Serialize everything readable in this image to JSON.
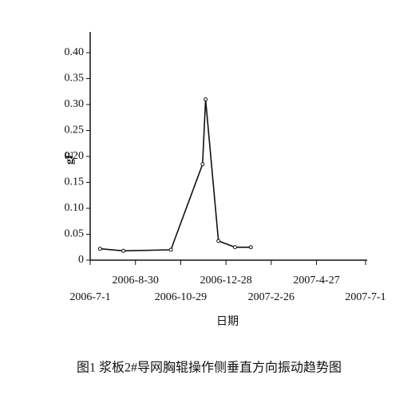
{
  "chart_data": {
    "type": "line",
    "title": "图1  浆板2#导网胸辊操作侧垂直方向振动趋势图",
    "x_label": "日期",
    "y_label": "gE",
    "x": [
      "2006-7-14",
      "2006-8-14",
      "2006-10-16",
      "2006-11-27",
      "2006-12-1",
      "2006-12-18",
      "2007-1-9",
      "2007-1-30"
    ],
    "series": [
      {
        "name": "gE",
        "color": "#111111",
        "values": [
          0.022,
          0.018,
          0.02,
          0.185,
          0.31,
          0.037,
          0.025,
          0.025
        ]
      }
    ],
    "xlim": [
      "2006-7-1",
      "2007-7-1"
    ],
    "xticks": [
      "2006-7-1",
      "2006-8-30",
      "2006-10-29",
      "2006-12-28",
      "2007-2-26",
      "2007-4-27",
      "2007-7-1"
    ],
    "ylim": [
      0,
      0.44
    ],
    "yticks": [
      0,
      0.05,
      {
        "value": 0.1,
        "label": "0.10"
      },
      0.15,
      {
        "value": 0.2,
        "label": "0.20"
      },
      0.25,
      {
        "value": 0.3,
        "label": "0.30"
      },
      0.35,
      {
        "value": 0.4,
        "label": "0.40"
      }
    ]
  }
}
